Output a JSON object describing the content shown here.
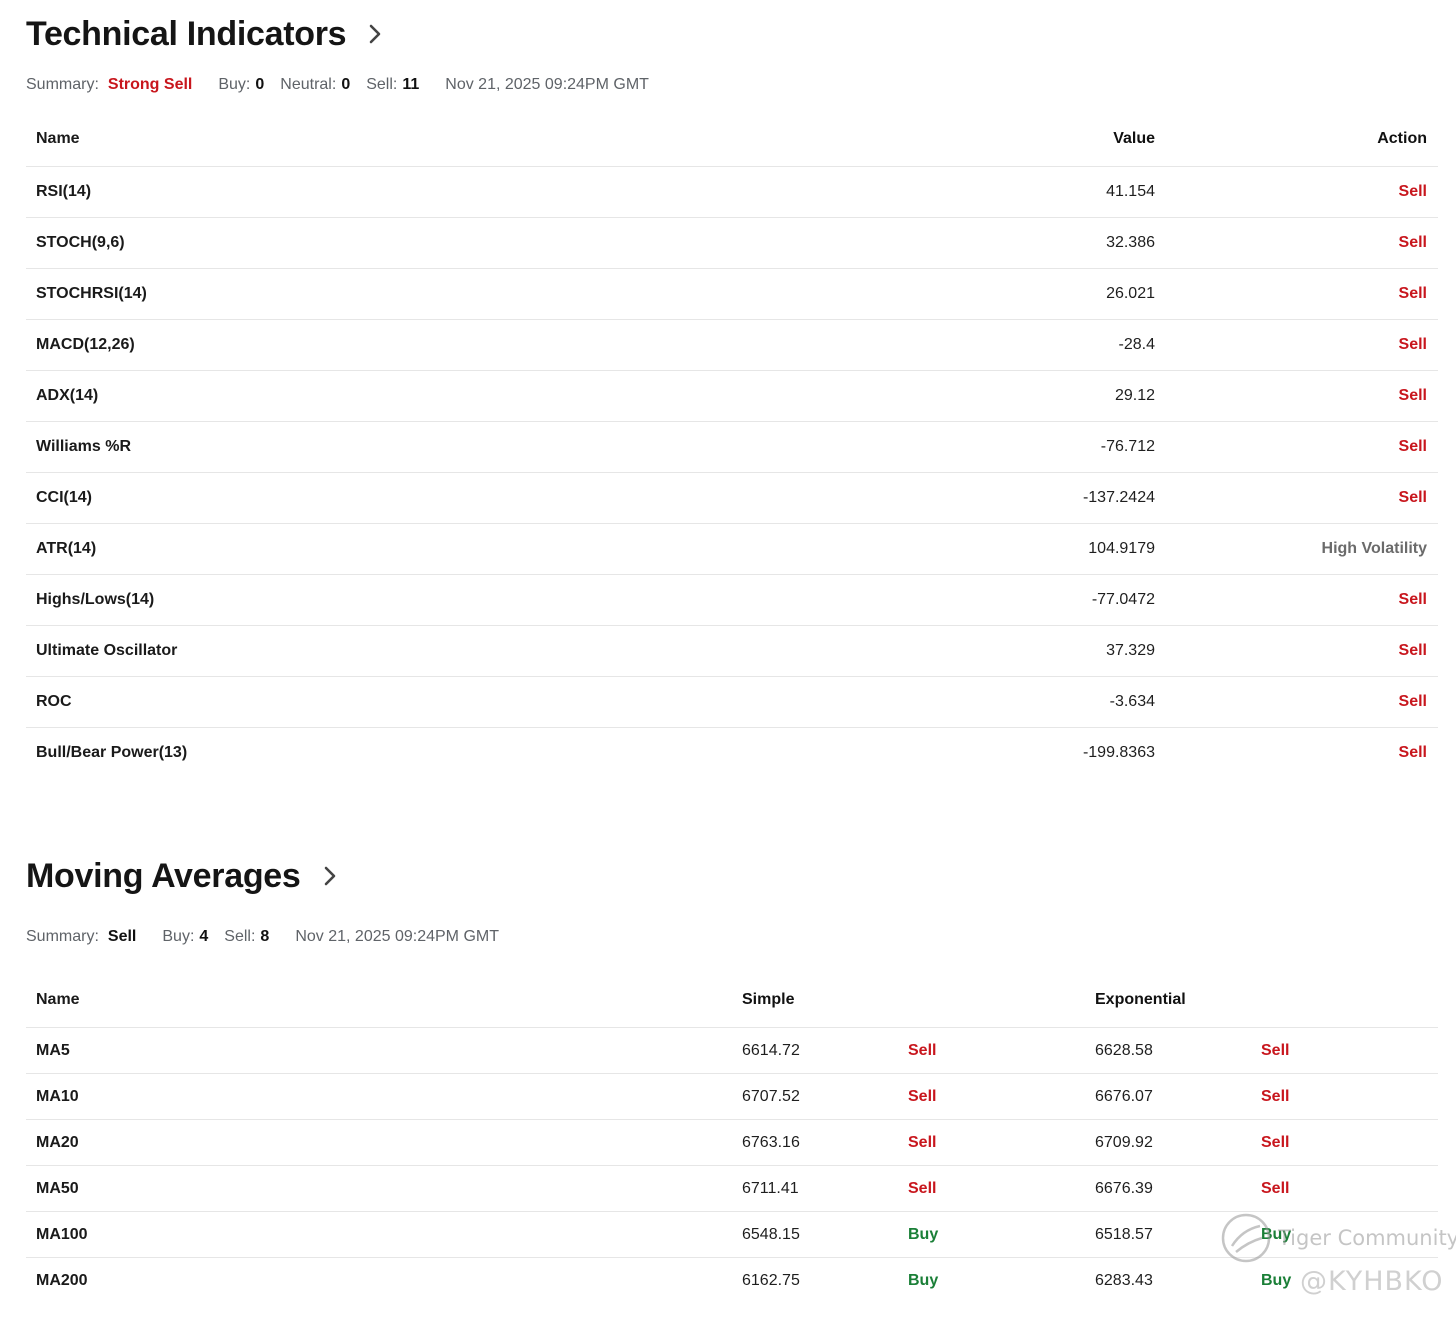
{
  "technical": {
    "title": "Technical Indicators",
    "summary_label": "Summary:",
    "summary_value": "Strong Sell",
    "buy_label": "Buy:",
    "buy_value": "0",
    "neutral_label": "Neutral:",
    "neutral_value": "0",
    "sell_label": "Sell:",
    "sell_value": "11",
    "timestamp": "Nov 21, 2025 09:24PM GMT",
    "columns": {
      "name": "Name",
      "value": "Value",
      "action": "Action"
    },
    "rows": [
      {
        "name": "RSI(14)",
        "value": "41.154",
        "action": "Sell"
      },
      {
        "name": "STOCH(9,6)",
        "value": "32.386",
        "action": "Sell"
      },
      {
        "name": "STOCHRSI(14)",
        "value": "26.021",
        "action": "Sell"
      },
      {
        "name": "MACD(12,26)",
        "value": "-28.4",
        "action": "Sell"
      },
      {
        "name": "ADX(14)",
        "value": "29.12",
        "action": "Sell"
      },
      {
        "name": "Williams %R",
        "value": "-76.712",
        "action": "Sell"
      },
      {
        "name": "CCI(14)",
        "value": "-137.2424",
        "action": "Sell"
      },
      {
        "name": "ATR(14)",
        "value": "104.9179",
        "action": "High Volatility"
      },
      {
        "name": "Highs/Lows(14)",
        "value": "-77.0472",
        "action": "Sell"
      },
      {
        "name": "Ultimate Oscillator",
        "value": "37.329",
        "action": "Sell"
      },
      {
        "name": "ROC",
        "value": "-3.634",
        "action": "Sell"
      },
      {
        "name": "Bull/Bear Power(13)",
        "value": "-199.8363",
        "action": "Sell"
      }
    ]
  },
  "moving_averages": {
    "title": "Moving Averages",
    "summary_label": "Summary:",
    "summary_value": "Sell",
    "buy_label": "Buy:",
    "buy_value": "4",
    "sell_label": "Sell:",
    "sell_value": "8",
    "timestamp": "Nov 21, 2025 09:24PM GMT",
    "columns": {
      "name": "Name",
      "simple": "Simple",
      "exponential": "Exponential"
    },
    "rows": [
      {
        "name": "MA5",
        "simple": "6614.72",
        "simple_action": "Sell",
        "exp": "6628.58",
        "exp_action": "Sell"
      },
      {
        "name": "MA10",
        "simple": "6707.52",
        "simple_action": "Sell",
        "exp": "6676.07",
        "exp_action": "Sell"
      },
      {
        "name": "MA20",
        "simple": "6763.16",
        "simple_action": "Sell",
        "exp": "6709.92",
        "exp_action": "Sell"
      },
      {
        "name": "MA50",
        "simple": "6711.41",
        "simple_action": "Sell",
        "exp": "6676.39",
        "exp_action": "Sell"
      },
      {
        "name": "MA100",
        "simple": "6548.15",
        "simple_action": "Buy",
        "exp": "6518.57",
        "exp_action": "Buy"
      },
      {
        "name": "MA200",
        "simple": "6162.75",
        "simple_action": "Buy",
        "exp": "6283.43",
        "exp_action": "Buy"
      }
    ]
  },
  "watermark": {
    "line1": "Tiger Community",
    "line2": "@KYHBKO"
  },
  "colors": {
    "sell": "#c8161d",
    "buy": "#1a7f37",
    "neutral": "#6b6b6b"
  },
  "icons": {
    "section_link": "chevron-right-icon",
    "watermark_logo": "tiger-logo-icon"
  }
}
